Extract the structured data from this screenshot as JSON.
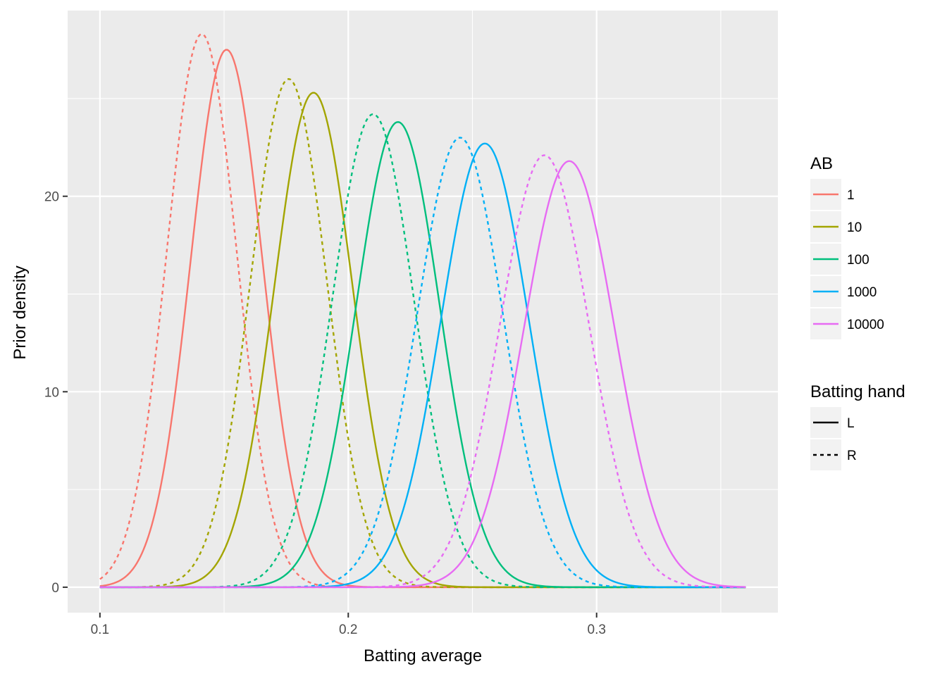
{
  "chart_data": {
    "type": "line",
    "xlabel": "Batting average",
    "ylabel": "Prior density",
    "xlim": [
      0.087,
      0.373
    ],
    "ylim": [
      -1.3,
      29.5
    ],
    "x_ticks": [
      0.1,
      0.2,
      0.3
    ],
    "x_tick_labels": [
      "0.1",
      "0.2",
      "0.3"
    ],
    "y_ticks": [
      0,
      10,
      20
    ],
    "y_tick_labels": [
      "0",
      "10",
      "20"
    ],
    "grid": true,
    "background": "#ebebeb",
    "legend_placement": "right",
    "legends": [
      {
        "title": "AB",
        "entries": [
          {
            "label": "1",
            "color": "#f8766d"
          },
          {
            "label": "10",
            "color": "#a3a500"
          },
          {
            "label": "100",
            "color": "#00bf7d"
          },
          {
            "label": "1000",
            "color": "#00b0f6"
          },
          {
            "label": "10000",
            "color": "#e76bf3"
          }
        ]
      },
      {
        "title": "Batting hand",
        "entries": [
          {
            "label": "L",
            "linetype": "solid"
          },
          {
            "label": "R",
            "linetype": "dashed"
          }
        ]
      }
    ],
    "x_range": [
      0.1,
      0.36
    ],
    "series": [
      {
        "ab": "1",
        "hand": "L",
        "color": "#f8766d",
        "linetype": "solid",
        "peak_x": 0.151,
        "peak_y": 27.5,
        "sigma": 0.0145
      },
      {
        "ab": "1",
        "hand": "R",
        "color": "#f8766d",
        "linetype": "dashed",
        "peak_x": 0.141,
        "peak_y": 28.3,
        "sigma": 0.0141
      },
      {
        "ab": "10",
        "hand": "L",
        "color": "#a3a500",
        "linetype": "solid",
        "peak_x": 0.186,
        "peak_y": 25.3,
        "sigma": 0.0158
      },
      {
        "ab": "10",
        "hand": "R",
        "color": "#a3a500",
        "linetype": "dashed",
        "peak_x": 0.176,
        "peak_y": 26.0,
        "sigma": 0.0153
      },
      {
        "ab": "100",
        "hand": "L",
        "color": "#00bf7d",
        "linetype": "solid",
        "peak_x": 0.22,
        "peak_y": 23.8,
        "sigma": 0.0168
      },
      {
        "ab": "100",
        "hand": "R",
        "color": "#00bf7d",
        "linetype": "dashed",
        "peak_x": 0.21,
        "peak_y": 24.2,
        "sigma": 0.0165
      },
      {
        "ab": "1000",
        "hand": "L",
        "color": "#00b0f6",
        "linetype": "solid",
        "peak_x": 0.255,
        "peak_y": 22.7,
        "sigma": 0.0176
      },
      {
        "ab": "1000",
        "hand": "R",
        "color": "#00b0f6",
        "linetype": "dashed",
        "peak_x": 0.245,
        "peak_y": 23.0,
        "sigma": 0.0173
      },
      {
        "ab": "10000",
        "hand": "L",
        "color": "#e76bf3",
        "linetype": "solid",
        "peak_x": 0.289,
        "peak_y": 21.8,
        "sigma": 0.0183
      },
      {
        "ab": "10000",
        "hand": "R",
        "color": "#e76bf3",
        "linetype": "dashed",
        "peak_x": 0.279,
        "peak_y": 22.1,
        "sigma": 0.018
      }
    ]
  }
}
